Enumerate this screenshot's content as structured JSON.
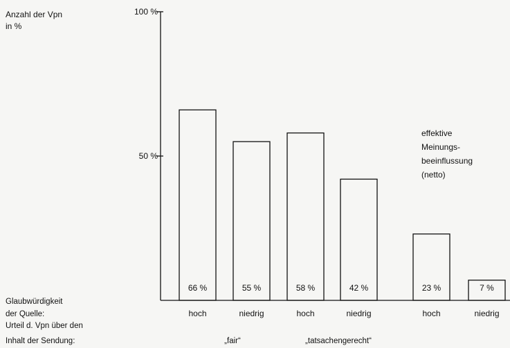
{
  "chart_data": {
    "type": "bar",
    "title": "",
    "ylabel_lines": [
      "Anzahl der Vpn",
      "in %"
    ],
    "ylim": [
      0,
      100
    ],
    "yticks": [
      {
        "value": 100,
        "label": "100 %"
      },
      {
        "value": 50,
        "label": "50 %"
      }
    ],
    "categories": [
      "hoch",
      "niedrig",
      "hoch",
      "niedrig",
      "hoch",
      "niedrig"
    ],
    "values": [
      66,
      55,
      58,
      42,
      23,
      7
    ],
    "data_labels": [
      "66 %",
      "55 %",
      "58 %",
      "42 %",
      "23 %",
      "7 %"
    ],
    "annotation_lines": [
      "effektive",
      "Meinungs-",
      "beeinflussung",
      "(netto)"
    ],
    "row_label_lines": [
      "Glaubwürdigkeit",
      "der Quelle:",
      "Urteil d. Vpn über den",
      "Inhalt der Sendung:"
    ],
    "groups": [
      "„fair“",
      "„tatsachengerecht“"
    ],
    "grid": false
  }
}
